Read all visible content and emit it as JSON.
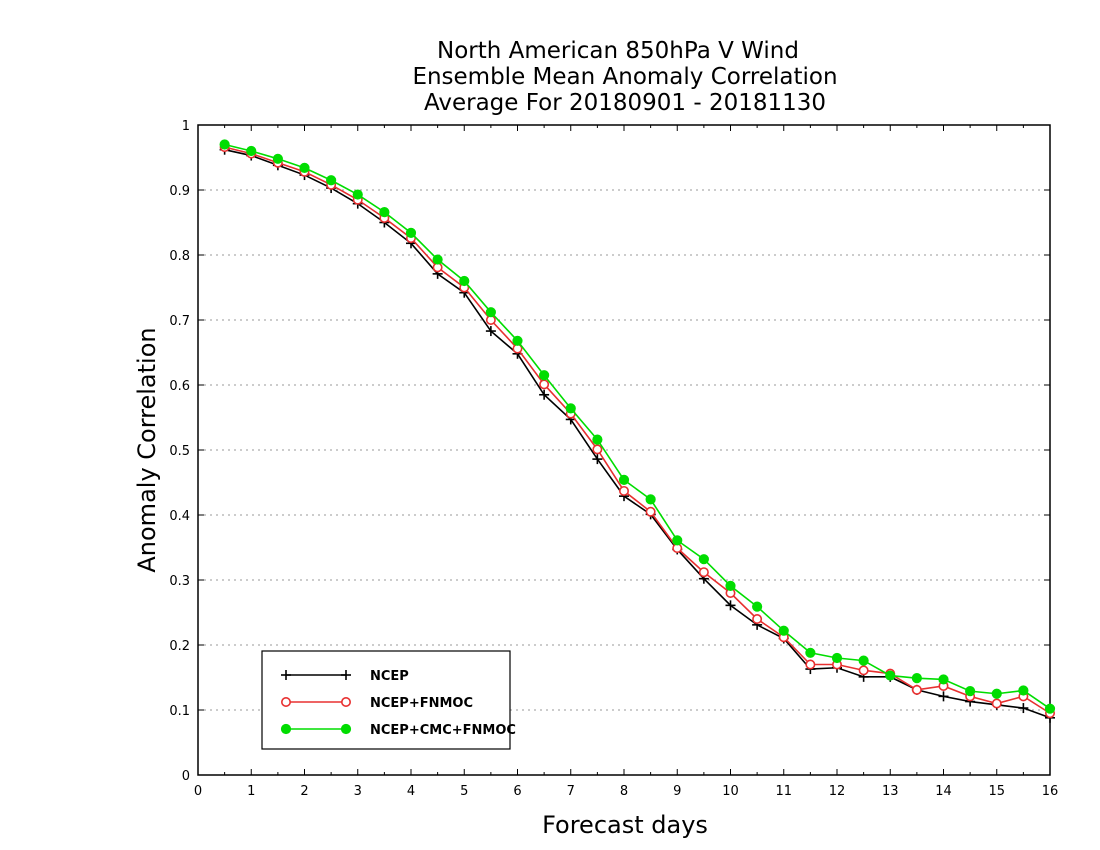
{
  "chart_data": {
    "type": "line",
    "title": [
      "North American 850hPa V Wind",
      "Ensemble Mean Anomaly Correlation",
      "Average For 20180901 - 20181130"
    ],
    "xlabel": "Forecast days",
    "ylabel": "Anomaly Correlation",
    "xlim": [
      0,
      16
    ],
    "ylim": [
      0,
      1
    ],
    "xticks": [
      "0",
      "1",
      "2",
      "3",
      "4",
      "5",
      "6",
      "7",
      "8",
      "9",
      "10",
      "11",
      "12",
      "13",
      "14",
      "15",
      "16"
    ],
    "yticks": [
      "0",
      "0.1",
      "0.2",
      "0.3",
      "0.4",
      "0.5",
      "0.6",
      "0.7",
      "0.8",
      "0.9",
      "1"
    ],
    "grid": "horizontal dotted",
    "legend_position": "bottom-left",
    "x": [
      0.5,
      1,
      1.5,
      2,
      2.5,
      3,
      3.5,
      4,
      4.5,
      5,
      5.5,
      6,
      6.5,
      7,
      7.5,
      8,
      8.5,
      9,
      9.5,
      10,
      10.5,
      11,
      11.5,
      12,
      12.5,
      13,
      13.5,
      14,
      14.5,
      15,
      15.5,
      16
    ],
    "series": [
      {
        "name": "NCEP",
        "color": "#000000",
        "marker": "plus",
        "values": [
          0.962,
          0.953,
          0.938,
          0.923,
          0.903,
          0.879,
          0.85,
          0.818,
          0.771,
          0.742,
          0.683,
          0.648,
          0.585,
          0.547,
          0.486,
          0.429,
          0.401,
          0.347,
          0.302,
          0.261,
          0.231,
          0.21,
          0.163,
          0.165,
          0.151,
          0.151,
          0.131,
          0.121,
          0.113,
          0.108,
          0.103,
          0.088
        ]
      },
      {
        "name": "NCEP+FNMOC",
        "color": "#e83030",
        "marker": "open-circle",
        "values": [
          0.966,
          0.956,
          0.942,
          0.928,
          0.908,
          0.885,
          0.857,
          0.826,
          0.781,
          0.75,
          0.7,
          0.656,
          0.601,
          0.556,
          0.501,
          0.437,
          0.405,
          0.349,
          0.312,
          0.28,
          0.24,
          0.212,
          0.17,
          0.17,
          0.161,
          0.156,
          0.131,
          0.137,
          0.121,
          0.11,
          0.121,
          0.095
        ]
      },
      {
        "name": "NCEP+CMC+FNMOC",
        "color": "#00dd00",
        "marker": "filled-circle",
        "values": [
          0.97,
          0.96,
          0.948,
          0.934,
          0.915,
          0.893,
          0.866,
          0.834,
          0.793,
          0.76,
          0.712,
          0.668,
          0.615,
          0.564,
          0.516,
          0.454,
          0.424,
          0.361,
          0.332,
          0.291,
          0.259,
          0.222,
          0.188,
          0.18,
          0.176,
          0.153,
          0.149,
          0.147,
          0.129,
          0.125,
          0.13,
          0.102
        ]
      }
    ]
  }
}
